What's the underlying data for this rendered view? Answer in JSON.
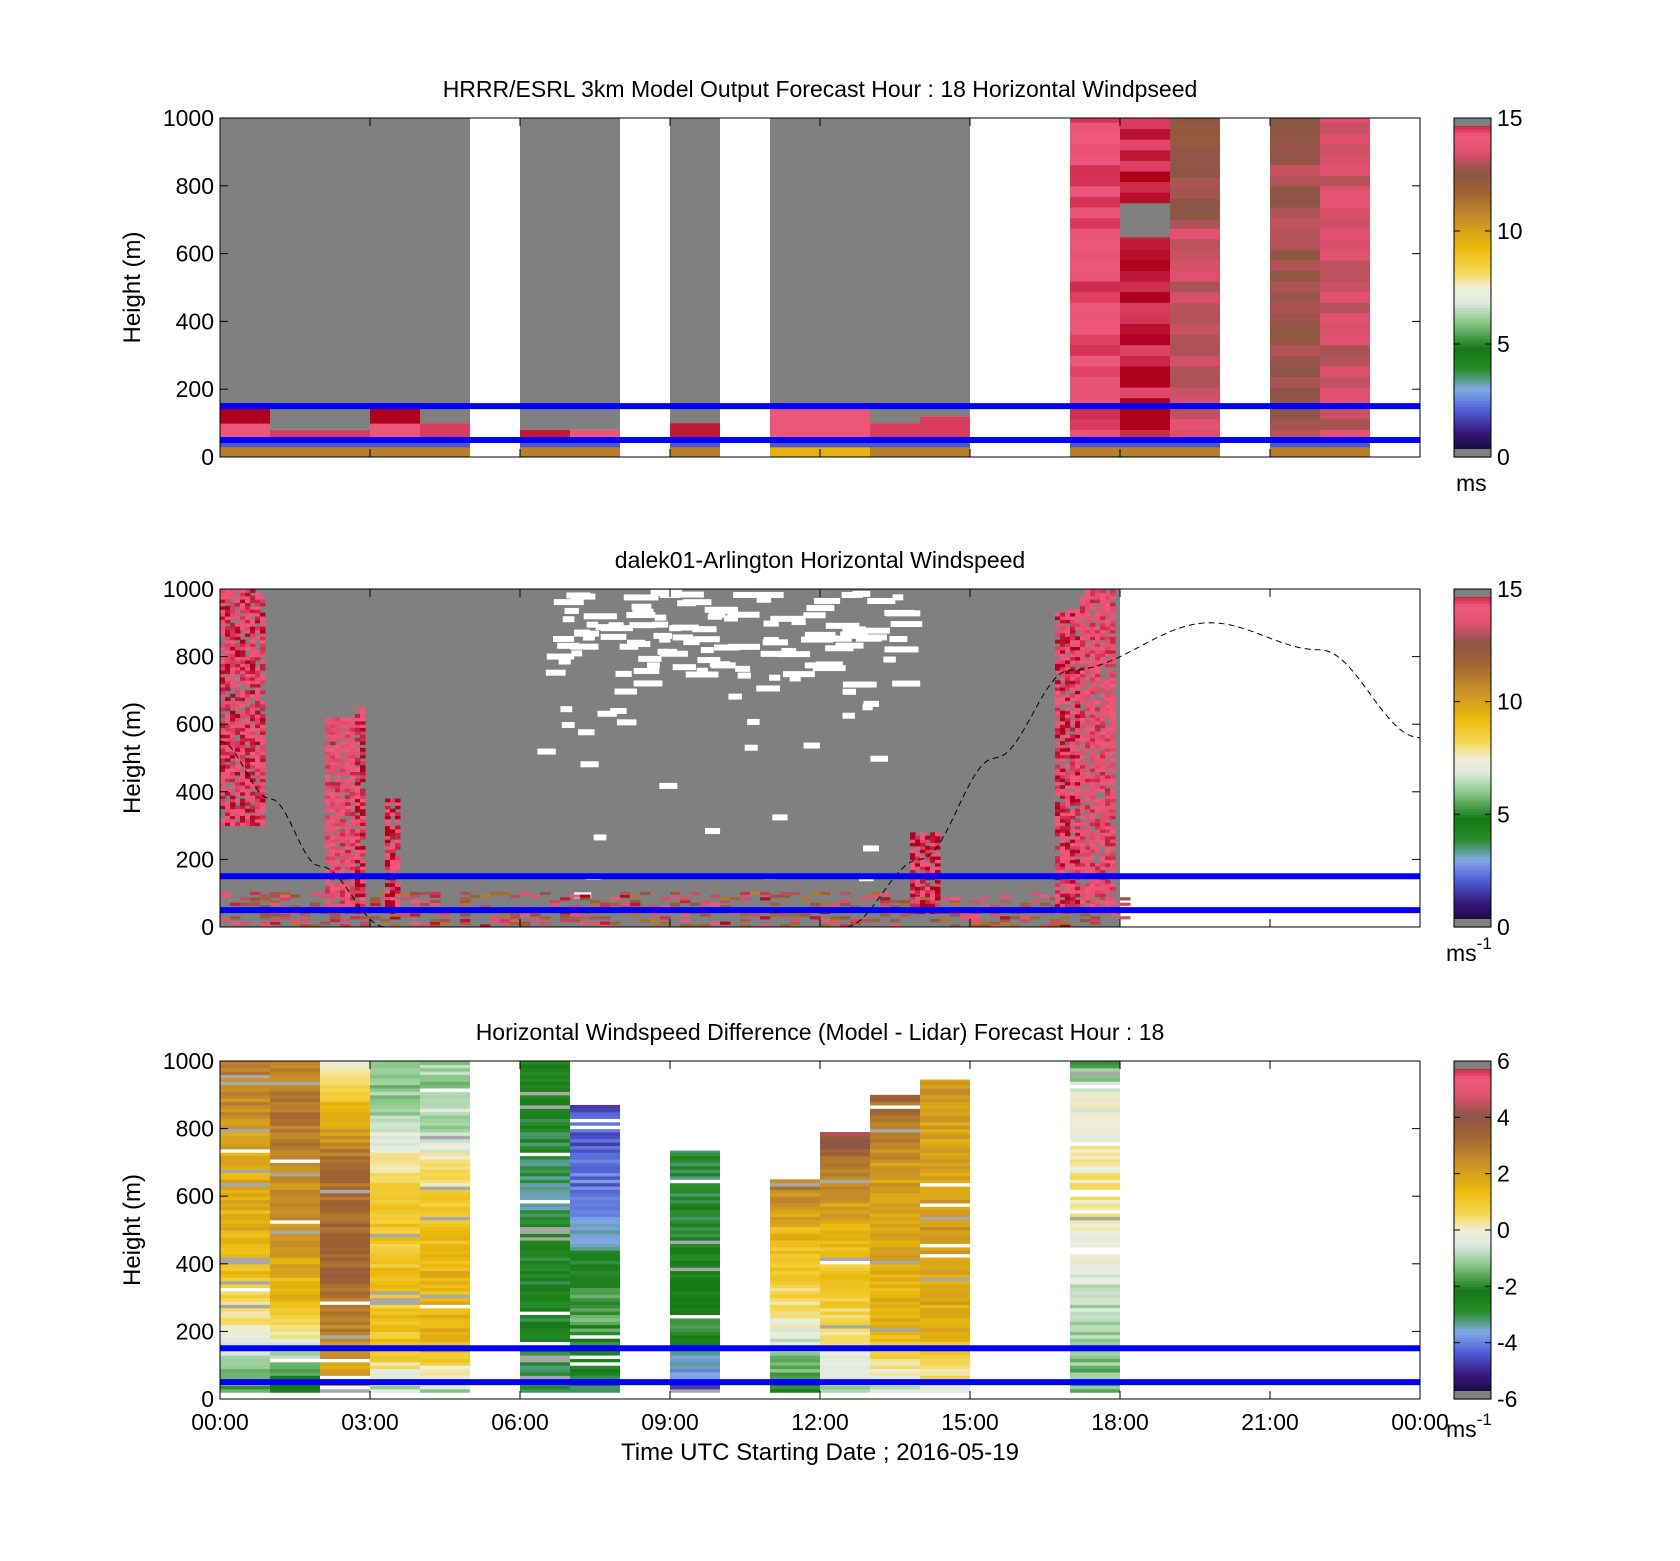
{
  "chart_data": [
    {
      "type": "heatmap",
      "title": "HRRR/ESRL 3km Model Output   Forecast Hour : 18 Horizontal Windpseed",
      "ylabel": "Height (m)",
      "xlabel": "",
      "ylim": [
        0,
        1000
      ],
      "yticks": [
        "0",
        "200",
        "400",
        "600",
        "800",
        "1000"
      ],
      "xlim_hours": [
        0,
        24
      ],
      "colorbar": {
        "range": [
          0,
          15
        ],
        "ticks": [
          "0",
          "5",
          "10",
          "15"
        ],
        "unit": "ms",
        "unit_sup": ""
      },
      "reference_lines_m": [
        150,
        50
      ],
      "columns": [
        {
          "t0": 0,
          "t1": 1,
          "bottom": [
            [
              0,
              30,
              11
            ],
            [
              30,
              50,
              2
            ],
            [
              50,
              100,
              14
            ],
            [
              100,
              150,
              15
            ]
          ],
          "top_fill": "gray",
          "top_from": 150
        },
        {
          "t0": 1,
          "t1": 2,
          "bottom": [
            [
              0,
              30,
              11
            ],
            [
              30,
              50,
              2
            ],
            [
              50,
              80,
              14.5
            ]
          ],
          "top_fill": "gray",
          "top_from": 80
        },
        {
          "t0": 2,
          "t1": 3,
          "bottom": [
            [
              0,
              30,
              11
            ],
            [
              30,
              50,
              2
            ],
            [
              50,
              80,
              14.5
            ]
          ],
          "top_fill": "gray",
          "top_from": 80
        },
        {
          "t0": 3,
          "t1": 4,
          "bottom": [
            [
              0,
              30,
              11
            ],
            [
              30,
              50,
              2
            ],
            [
              50,
              100,
              14
            ],
            [
              100,
              150,
              15
            ]
          ],
          "top_fill": "gray",
          "top_from": 150
        },
        {
          "t0": 4,
          "t1": 5,
          "bottom": [
            [
              0,
              30,
              11
            ],
            [
              30,
              50,
              2
            ],
            [
              50,
              100,
              14.5
            ]
          ],
          "top_fill": "gray",
          "top_from": 100
        },
        {
          "t0": 6,
          "t1": 7,
          "bottom": [
            [
              0,
              30,
              11
            ],
            [
              30,
              50,
              2
            ],
            [
              50,
              80,
              14.8
            ]
          ],
          "top_fill": "gray",
          "top_from": 80
        },
        {
          "t0": 7,
          "t1": 8,
          "bottom": [
            [
              0,
              30,
              11
            ],
            [
              30,
              50,
              2
            ],
            [
              50,
              80,
              14
            ]
          ],
          "top_fill": "gray",
          "top_from": 80
        },
        {
          "t0": 9,
          "t1": 10,
          "bottom": [
            [
              0,
              30,
              11
            ],
            [
              30,
              50,
              2
            ],
            [
              50,
              100,
              14.8
            ]
          ],
          "top_fill": "gray",
          "top_from": 100
        },
        {
          "t0": 11,
          "t1": 12,
          "bottom": [
            [
              0,
              30,
              9.5
            ],
            [
              30,
              50,
              2
            ],
            [
              50,
              150,
              14
            ]
          ],
          "top_fill": "gray",
          "top_from": 150
        },
        {
          "t0": 12,
          "t1": 13,
          "bottom": [
            [
              0,
              30,
              9.5
            ],
            [
              30,
              50,
              2
            ],
            [
              50,
              150,
              14
            ]
          ],
          "top_fill": "gray",
          "top_from": 150
        },
        {
          "t0": 13,
          "t1": 14,
          "bottom": [
            [
              0,
              30,
              11
            ],
            [
              30,
              50,
              2
            ],
            [
              50,
              100,
              14.5
            ]
          ],
          "top_fill": "gray",
          "top_from": 100
        },
        {
          "t0": 14,
          "t1": 15,
          "bottom": [
            [
              0,
              30,
              11
            ],
            [
              30,
              50,
              2
            ],
            [
              50,
              120,
              14.5
            ]
          ],
          "top_fill": "gray",
          "top_from": 120
        },
        {
          "t0": 17,
          "t1": 18,
          "bottom": [
            [
              0,
              30,
              11
            ],
            [
              30,
              50,
              2
            ],
            [
              50,
              1000,
              14.2
            ]
          ],
          "top_fill": "none",
          "top_from": 1000
        },
        {
          "t0": 18,
          "t1": 19,
          "bottom": [
            [
              0,
              30,
              11
            ],
            [
              30,
              50,
              2
            ],
            [
              50,
              650,
              14.8
            ],
            [
              650,
              750,
              -1
            ],
            [
              750,
              1000,
              14.8
            ]
          ],
          "top_fill": "none",
          "top_from": 1000
        },
        {
          "t0": 19,
          "t1": 20,
          "bottom": [
            [
              0,
              30,
              11
            ],
            [
              30,
              50,
              2
            ],
            [
              50,
              700,
              13.3
            ],
            [
              700,
              1000,
              12.5
            ]
          ],
          "top_fill": "none",
          "top_from": 1000
        },
        {
          "t0": 21,
          "t1": 22,
          "bottom": [
            [
              0,
              30,
              11
            ],
            [
              30,
              50,
              2
            ],
            [
              50,
              1000,
              12.8
            ]
          ],
          "top_fill": "none",
          "top_from": 1000
        },
        {
          "t0": 22,
          "t1": 23,
          "bottom": [
            [
              0,
              30,
              11
            ],
            [
              30,
              50,
              2
            ],
            [
              50,
              1000,
              13.3
            ]
          ],
          "top_fill": "none",
          "top_from": 1000
        }
      ]
    },
    {
      "type": "heatmap",
      "title": "dalek01-Arlington  Horizontal Windspeed",
      "ylabel": "Height (m)",
      "xlabel": "",
      "ylim": [
        0,
        1000
      ],
      "yticks": [
        "0",
        "200",
        "400",
        "600",
        "800",
        "1000"
      ],
      "xlim_hours": [
        0,
        24
      ],
      "data_extent_hours": [
        0,
        18
      ],
      "colorbar": {
        "range": [
          0,
          15
        ],
        "ticks": [
          "0",
          "5",
          "10",
          "15"
        ],
        "unit": "ms",
        "unit_sup": "-1"
      },
      "reference_lines_m": [
        150,
        50
      ],
      "background": "gray",
      "columns": [
        {
          "t0": 0,
          "t1": 0.8,
          "from": 300,
          "to": 1000,
          "value": 14.5
        },
        {
          "t0": 2.1,
          "t1": 2.7,
          "from": 40,
          "to": 620,
          "value": 14.2
        },
        {
          "t0": 2.7,
          "t1": 2.9,
          "from": 40,
          "to": 650,
          "value": 14.8
        },
        {
          "t0": 3.3,
          "t1": 3.6,
          "from": 40,
          "to": 380,
          "value": 14.8
        },
        {
          "t0": 16.7,
          "t1": 17.2,
          "from": 40,
          "to": 940,
          "value": 14.6
        },
        {
          "t0": 17.2,
          "t1": 17.9,
          "from": 40,
          "to": 1000,
          "value": 14.2
        },
        {
          "t0": 13.8,
          "t1": 14.3,
          "from": 40,
          "to": 280,
          "value": 14.8
        }
      ],
      "near_surface_layer_m": [
        0,
        100
      ],
      "white_gap_region": {
        "t0": 6.5,
        "t1": 13.5,
        "from": 700,
        "to": 1000
      },
      "elevation_curve_hours": [
        [
          0,
          550
        ],
        [
          1,
          380
        ],
        [
          2,
          180
        ],
        [
          3.3,
          0
        ],
        [
          12.5,
          0
        ],
        [
          14,
          200
        ],
        [
          15.5,
          500
        ],
        [
          17,
          760
        ],
        [
          19.8,
          900
        ],
        [
          22,
          820
        ],
        [
          24,
          560
        ]
      ]
    },
    {
      "type": "heatmap",
      "title": "Horizontal Windspeed Difference (Model - Lidar) Forecast Hour : 18",
      "ylabel": "Height (m)",
      "xlabel": "Time UTC  Starting Date ; 2016-05-19",
      "ylim": [
        0,
        1000
      ],
      "yticks": [
        "0",
        "200",
        "400",
        "600",
        "800",
        "1000"
      ],
      "xticks": [
        "00:00",
        "03:00",
        "06:00",
        "09:00",
        "12:00",
        "15:00",
        "18:00",
        "21:00",
        "00:00"
      ],
      "xlim_hours": [
        0,
        24
      ],
      "colorbar": {
        "range": [
          -6,
          6
        ],
        "ticks": [
          "-6",
          "-4",
          "-2",
          "0",
          "2",
          "4",
          "6"
        ],
        "unit": "ms",
        "unit_sup": "-1"
      },
      "reference_lines_m": [
        150,
        50
      ],
      "columns": [
        {
          "t0": 0,
          "t1": 1,
          "top": 1000,
          "profile": [
            [
              0,
              -2
            ],
            [
              150,
              -0.5
            ],
            [
              250,
              0.5
            ],
            [
              400,
              1.5
            ],
            [
              700,
              1.8
            ],
            [
              1000,
              3
            ]
          ]
        },
        {
          "t0": 1,
          "t1": 2,
          "top": 1000,
          "profile": [
            [
              0,
              -2.8
            ],
            [
              150,
              -0.5
            ],
            [
              250,
              1.2
            ],
            [
              500,
              2.3
            ],
            [
              800,
              2.8
            ],
            [
              1000,
              2.8
            ]
          ]
        },
        {
          "t0": 2,
          "t1": 3,
          "top": 1000,
          "profile": [
            [
              0,
              1.5
            ],
            [
              150,
              2.5
            ],
            [
              400,
              3.5
            ],
            [
              700,
              3.0
            ],
            [
              850,
              1.5
            ],
            [
              1000,
              -0.6
            ]
          ]
        },
        {
          "t0": 3,
          "t1": 4,
          "top": 1000,
          "profile": [
            [
              0,
              -1.2
            ],
            [
              150,
              1.2
            ],
            [
              500,
              1.0
            ],
            [
              700,
              0.3
            ],
            [
              850,
              -1.0
            ],
            [
              1000,
              -1.4
            ]
          ]
        },
        {
          "t0": 4,
          "t1": 5,
          "top": 1000,
          "profile": [
            [
              0,
              -1.4
            ],
            [
              150,
              1.6
            ],
            [
              500,
              1.4
            ],
            [
              650,
              0.4
            ],
            [
              800,
              -0.8
            ],
            [
              1000,
              -1.2
            ]
          ]
        },
        {
          "t0": 6,
          "t1": 7,
          "top": 1000,
          "profile": [
            [
              0,
              -3.0
            ],
            [
              300,
              -2.5
            ],
            [
              600,
              -3.2
            ],
            [
              1000,
              -2.4
            ]
          ]
        },
        {
          "t0": 7,
          "t1": 8,
          "top": 870,
          "profile": [
            [
              0,
              -3.0
            ],
            [
              250,
              -1.5
            ],
            [
              400,
              -2.6
            ],
            [
              550,
              -4.0
            ],
            [
              700,
              -4.2
            ],
            [
              870,
              -4.6
            ]
          ]
        },
        {
          "t0": 9,
          "t1": 10,
          "top": 735,
          "profile": [
            [
              0,
              -5.0
            ],
            [
              200,
              -2.0
            ],
            [
              400,
              -2.5
            ],
            [
              735,
              -3.0
            ]
          ]
        },
        {
          "t0": 11,
          "t1": 12,
          "top": 650,
          "profile": [
            [
              0,
              -2.5
            ],
            [
              200,
              -0.2
            ],
            [
              350,
              1.0
            ],
            [
              500,
              1.5
            ],
            [
              650,
              3.0
            ]
          ]
        },
        {
          "t0": 12,
          "t1": 13,
          "top": 790,
          "profile": [
            [
              0,
              -1.0
            ],
            [
              200,
              0.5
            ],
            [
              400,
              1.2
            ],
            [
              600,
              2.2
            ],
            [
              790,
              4.2
            ]
          ]
        },
        {
          "t0": 13,
          "t1": 14,
          "top": 900,
          "profile": [
            [
              0,
              -0.8
            ],
            [
              200,
              1.5
            ],
            [
              500,
              1.9
            ],
            [
              700,
              2.3
            ],
            [
              900,
              3.4
            ]
          ]
        },
        {
          "t0": 14,
          "t1": 15,
          "top": 945,
          "profile": [
            [
              0,
              -0.3
            ],
            [
              200,
              1.7
            ],
            [
              500,
              2.1
            ],
            [
              800,
              2.0
            ],
            [
              945,
              2.2
            ]
          ]
        },
        {
          "t0": 17,
          "t1": 18,
          "top": 1000,
          "profile": [
            [
              0,
              -1.6
            ],
            [
              300,
              -0.6
            ],
            [
              600,
              0.3
            ],
            [
              900,
              -0.3
            ],
            [
              1000,
              -1.8
            ]
          ]
        }
      ]
    }
  ]
}
